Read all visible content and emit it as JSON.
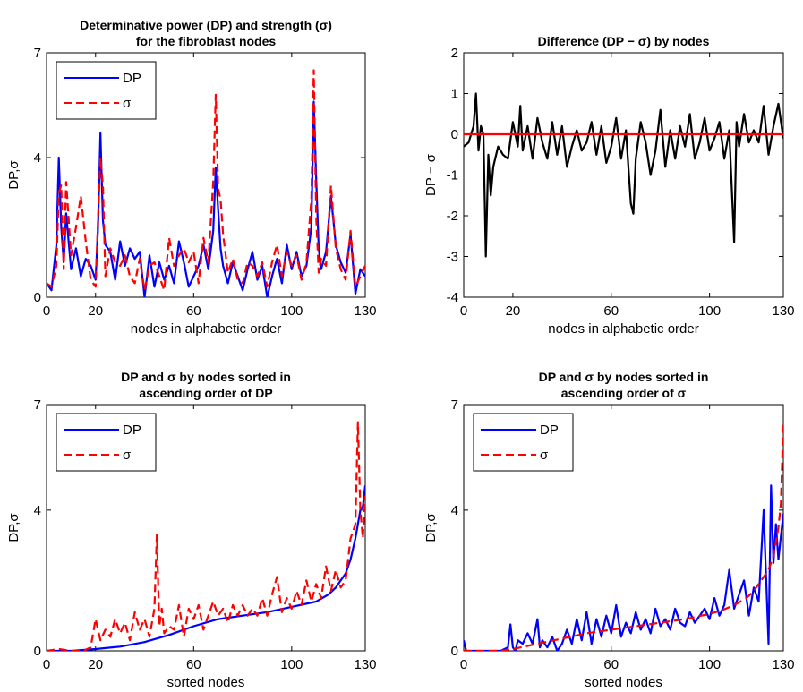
{
  "chart_data": [
    {
      "type": "line",
      "title": [
        "Determinative power (DP) and strength (σ)",
        "for the fibroblast nodes"
      ],
      "xlabel": "nodes in alphabetic order",
      "ylabel": "DP,σ",
      "xlim": [
        0,
        130
      ],
      "ylim": [
        0,
        7
      ],
      "xticks": [
        0,
        20,
        60,
        100,
        130
      ],
      "yticks": [
        0,
        4,
        7
      ],
      "legend": {
        "position": "top-left",
        "entries": [
          "DP",
          "σ"
        ]
      },
      "series": [
        {
          "name": "DP",
          "color": "#0000ff",
          "dash": "solid",
          "x": [
            0,
            2,
            4,
            5,
            6,
            7,
            8,
            10,
            12,
            14,
            16,
            18,
            20,
            21,
            22,
            23,
            24,
            26,
            28,
            30,
            32,
            34,
            36,
            38,
            40,
            42,
            44,
            46,
            48,
            50,
            52,
            54,
            56,
            58,
            60,
            62,
            64,
            66,
            68,
            69,
            70,
            71,
            72,
            74,
            76,
            78,
            80,
            82,
            84,
            86,
            88,
            90,
            92,
            94,
            96,
            98,
            100,
            102,
            104,
            106,
            108,
            109,
            110,
            111,
            112,
            114,
            116,
            118,
            120,
            122,
            124,
            126,
            128,
            130
          ],
          "y": [
            0.4,
            0.2,
            1.5,
            4.0,
            2.0,
            1.0,
            2.4,
            0.8,
            1.4,
            0.6,
            1.1,
            0.9,
            0.5,
            2.0,
            4.7,
            2.2,
            1.5,
            1.3,
            0.5,
            1.6,
            0.9,
            1.4,
            1.1,
            1.3,
            0,
            1.2,
            0.3,
            1.0,
            0.5,
            0.9,
            0.4,
            1.6,
            1.0,
            0.3,
            0.6,
            0.9,
            1.5,
            0.8,
            1.9,
            3.7,
            2.5,
            1.4,
            0.9,
            0.4,
            1.0,
            0.6,
            0.2,
            0.8,
            1.3,
            0.5,
            0.9,
            0,
            0.6,
            1.1,
            0.4,
            1.5,
            0.8,
            1.3,
            0.6,
            0.9,
            2.0,
            5.6,
            3.4,
            1.4,
            0.8,
            1.3,
            2.9,
            1.5,
            1.0,
            0.7,
            1.8,
            0.1,
            0.8,
            0.6
          ]
        },
        {
          "name": "σ",
          "color": "#ff0000",
          "dash": "dashed",
          "x": [
            0,
            2,
            4,
            5,
            6,
            7,
            8,
            10,
            12,
            14,
            16,
            18,
            20,
            21,
            22,
            23,
            24,
            26,
            28,
            30,
            32,
            34,
            36,
            38,
            40,
            42,
            44,
            46,
            48,
            50,
            52,
            54,
            56,
            58,
            60,
            62,
            64,
            66,
            68,
            69,
            70,
            71,
            72,
            74,
            76,
            78,
            80,
            82,
            84,
            86,
            88,
            90,
            92,
            94,
            96,
            98,
            100,
            102,
            104,
            106,
            108,
            109,
            110,
            111,
            112,
            114,
            116,
            118,
            120,
            122,
            124,
            126,
            128,
            130
          ],
          "y": [
            0.4,
            0.3,
            0.9,
            3.0,
            3.2,
            0.8,
            3.3,
            1.2,
            2.0,
            2.9,
            1.6,
            0.5,
            0.3,
            2.2,
            4.0,
            3.2,
            0.6,
            1.4,
            1.0,
            0.9,
            1.2,
            0.6,
            0.4,
            1.1,
            0.2,
            0.9,
            1.0,
            0.6,
            0.2,
            1.7,
            0.9,
            1.2,
            1.4,
            1.0,
            1.3,
            0.4,
            1.7,
            1.0,
            3.3,
            5.8,
            3.1,
            2.8,
            1.8,
            0.7,
            1.1,
            0.5,
            0.4,
            1.0,
            0.9,
            0.6,
            1.0,
            0.3,
            1.0,
            1.5,
            0.6,
            1.3,
            0.9,
            1.2,
            0.5,
            1.0,
            2.8,
            6.5,
            2.3,
            0.7,
            1.1,
            0.9,
            3.2,
            1.4,
            0.8,
            0.5,
            1.9,
            0.3,
            0.6,
            0.9
          ]
        }
      ]
    },
    {
      "type": "line",
      "title": [
        "Difference (DP − σ) by nodes"
      ],
      "xlabel": "nodes in alphabetic order",
      "ylabel": "DP − σ",
      "xlim": [
        0,
        130
      ],
      "ylim": [
        -4,
        2
      ],
      "xticks": [
        0,
        20,
        60,
        100,
        130
      ],
      "yticks": [
        -4,
        -3,
        -2,
        -1,
        0,
        1,
        2
      ],
      "series": [
        {
          "name": "",
          "color": "#000000",
          "dash": "solid",
          "x": [
            0,
            2,
            4,
            5,
            6,
            7,
            8,
            9,
            10,
            11,
            12,
            14,
            16,
            18,
            20,
            22,
            23,
            24,
            26,
            28,
            30,
            32,
            34,
            36,
            38,
            40,
            42,
            44,
            46,
            48,
            50,
            52,
            54,
            56,
            58,
            60,
            62,
            64,
            66,
            68,
            69,
            70,
            72,
            74,
            76,
            78,
            80,
            82,
            84,
            86,
            88,
            90,
            92,
            94,
            96,
            98,
            100,
            102,
            104,
            106,
            108,
            110,
            111,
            112,
            114,
            116,
            118,
            120,
            122,
            124,
            126,
            128,
            130
          ],
          "y": [
            -0.3,
            -0.2,
            0.2,
            1.0,
            -0.4,
            0.2,
            0,
            -3.0,
            -0.5,
            -1.5,
            -0.8,
            -0.3,
            -0.5,
            -0.6,
            0.3,
            -0.3,
            0.7,
            -0.4,
            0.2,
            -0.6,
            0.4,
            -0.2,
            -0.6,
            0.3,
            -0.5,
            0.2,
            -0.8,
            -0.3,
            0.1,
            -0.4,
            -0.2,
            0.3,
            -0.5,
            0.2,
            -0.7,
            -0.3,
            0.4,
            -0.6,
            0.1,
            -1.7,
            -1.95,
            -0.6,
            0.3,
            -0.2,
            -1.0,
            -0.4,
            0.6,
            -0.8,
            0.1,
            -0.6,
            0.2,
            -0.3,
            0.5,
            -0.6,
            -0.2,
            0.4,
            -0.4,
            -0.1,
            0.3,
            -0.6,
            0.1,
            -2.65,
            0.3,
            -0.3,
            0.5,
            -0.2,
            0.1,
            -0.2,
            0.7,
            -0.5,
            0.2,
            0.75,
            -0.1
          ]
        },
        {
          "name": "",
          "color": "#ff0000",
          "dash": "solid",
          "x": [
            0,
            130
          ],
          "y": [
            0,
            0
          ]
        }
      ]
    },
    {
      "type": "line",
      "title": [
        "DP and σ by nodes sorted in",
        "ascending order of DP"
      ],
      "xlabel": "sorted nodes",
      "ylabel": "DP,σ",
      "xlim": [
        0,
        130
      ],
      "ylim": [
        0,
        7
      ],
      "xticks": [
        0,
        20,
        60,
        100,
        130
      ],
      "yticks": [
        0,
        4,
        7
      ],
      "legend": {
        "position": "top-left",
        "entries": [
          "DP",
          "σ"
        ]
      },
      "series": [
        {
          "name": "DP",
          "color": "#0000ff",
          "dash": "solid",
          "x": [
            0,
            10,
            20,
            30,
            40,
            50,
            60,
            70,
            80,
            90,
            100,
            110,
            115,
            118,
            120,
            122,
            124,
            126,
            127,
            128,
            129,
            130
          ],
          "y": [
            0,
            0,
            0.05,
            0.12,
            0.25,
            0.45,
            0.7,
            0.9,
            1.0,
            1.1,
            1.25,
            1.4,
            1.6,
            1.8,
            2.0,
            2.2,
            2.6,
            3.2,
            3.6,
            4.0,
            4.1,
            4.7
          ]
        },
        {
          "name": "σ",
          "color": "#ff0000",
          "dash": "dashed",
          "x": [
            0,
            5,
            10,
            15,
            18,
            20,
            22,
            24,
            26,
            28,
            30,
            32,
            34,
            36,
            38,
            40,
            42,
            44,
            45,
            46,
            47,
            48,
            50,
            52,
            54,
            56,
            58,
            60,
            62,
            64,
            66,
            68,
            70,
            72,
            74,
            76,
            78,
            80,
            82,
            84,
            86,
            88,
            90,
            92,
            94,
            96,
            98,
            100,
            102,
            104,
            106,
            108,
            110,
            112,
            114,
            116,
            118,
            120,
            122,
            124,
            126,
            127,
            128,
            129,
            130
          ],
          "y": [
            0,
            0.05,
            0,
            0,
            0.1,
            0.9,
            0.3,
            0.6,
            0.4,
            0.9,
            0.5,
            0.8,
            0.3,
            1.1,
            0.6,
            0.9,
            0.4,
            1.2,
            3.3,
            0.7,
            1.2,
            0.5,
            0.7,
            0.6,
            1.3,
            0.4,
            1.2,
            0.9,
            1.3,
            0.6,
            1.0,
            1.4,
            1.0,
            1.2,
            0.8,
            1.3,
            1.0,
            1.3,
            1.0,
            1.2,
            1.0,
            1.5,
            1.0,
            1.6,
            2.1,
            1.1,
            1.5,
            1.2,
            1.7,
            1.3,
            2.0,
            1.4,
            1.9,
            1.5,
            2.4,
            1.7,
            2.3,
            1.8,
            2.0,
            3.2,
            3.6,
            6.5,
            4.0,
            3.2,
            4.4
          ]
        }
      ]
    },
    {
      "type": "line",
      "title": [
        "DP and σ by nodes sorted in",
        "ascending order of σ"
      ],
      "xlabel": "sorted nodes",
      "ylabel": "DP,σ",
      "xlim": [
        0,
        130
      ],
      "ylim": [
        0,
        7
      ],
      "xticks": [
        0,
        60,
        100,
        130
      ],
      "yticks": [
        0,
        4,
        7
      ],
      "legend": {
        "position": "top-left",
        "entries": [
          "DP",
          "σ"
        ]
      },
      "series": [
        {
          "name": "DP",
          "color": "#0000ff",
          "dash": "solid",
          "x": [
            0,
            1,
            2,
            5,
            10,
            15,
            18,
            19,
            20,
            21,
            22,
            24,
            26,
            28,
            30,
            31,
            32,
            34,
            36,
            38,
            40,
            42,
            44,
            46,
            48,
            50,
            52,
            54,
            56,
            58,
            60,
            62,
            64,
            66,
            68,
            70,
            72,
            74,
            76,
            78,
            80,
            82,
            84,
            86,
            88,
            90,
            92,
            94,
            96,
            98,
            100,
            102,
            104,
            106,
            108,
            110,
            112,
            114,
            116,
            118,
            120,
            122,
            124,
            125,
            126,
            127,
            128,
            130
          ],
          "y": [
            0.3,
            0,
            0,
            0,
            0,
            0,
            0.1,
            0.75,
            0.1,
            0,
            0.3,
            0.2,
            0.5,
            0.2,
            0.9,
            0.1,
            0.3,
            0.1,
            0.4,
            0,
            0.2,
            0.6,
            0.2,
            0.9,
            0.3,
            1.1,
            0.2,
            0.9,
            0.4,
            1.0,
            0.5,
            1.3,
            0.4,
            0.8,
            0.5,
            1.1,
            0.6,
            0.9,
            0.5,
            1.2,
            0.7,
            0.9,
            0.6,
            1.2,
            0.8,
            0.7,
            1.1,
            0.8,
            1.0,
            1.2,
            0.9,
            1.5,
            1.0,
            1.3,
            2.3,
            1.2,
            1.6,
            2.0,
            1.0,
            1.8,
            1.4,
            4.0,
            0.2,
            4.7,
            2.5,
            3.6,
            2.6,
            3.9
          ]
        },
        {
          "name": "σ",
          "color": "#ff0000",
          "dash": "dashed",
          "x": [
            0,
            10,
            15,
            20,
            30,
            40,
            50,
            60,
            70,
            80,
            90,
            100,
            105,
            110,
            115,
            118,
            120,
            122,
            124,
            126,
            127,
            128,
            129,
            130
          ],
          "y": [
            0,
            0,
            0,
            0.05,
            0.2,
            0.35,
            0.5,
            0.6,
            0.7,
            0.8,
            0.9,
            1.05,
            1.15,
            1.3,
            1.5,
            1.7,
            1.9,
            2.1,
            2.3,
            2.7,
            3.1,
            3.5,
            4.2,
            6.5
          ]
        }
      ]
    }
  ]
}
